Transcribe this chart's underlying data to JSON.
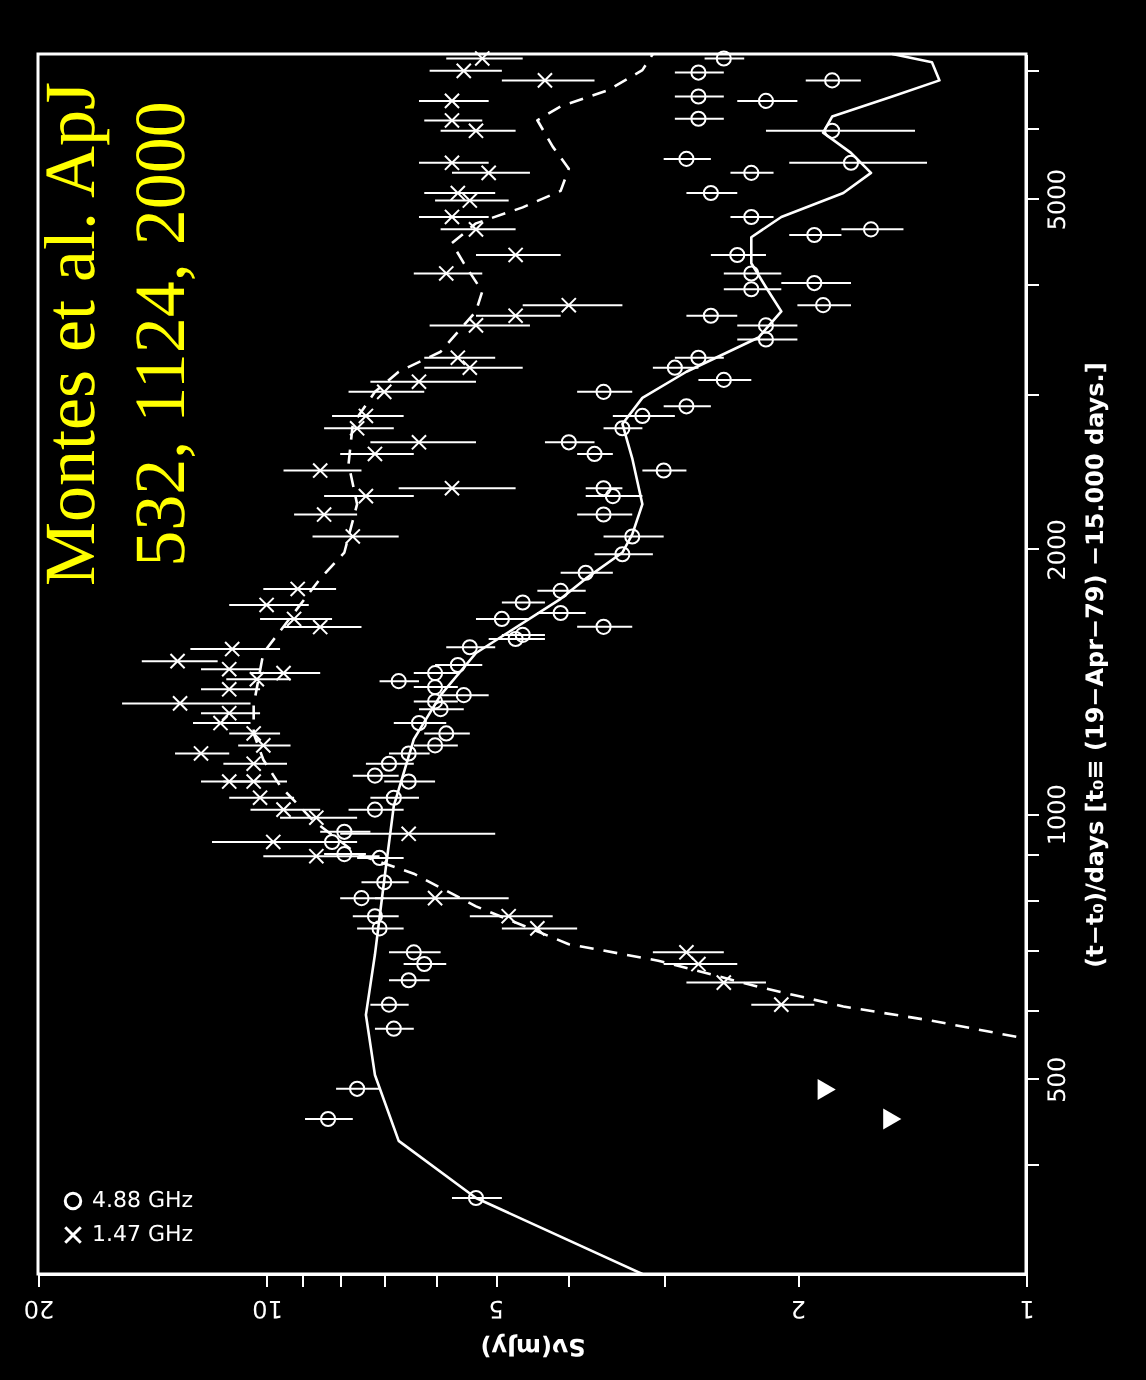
{
  "chart_data": {
    "type": "scatter",
    "xlabel": "Sν(mJy)",
    "ylabel": "(t−t₀)/days [t₀≡ (19−Apr−79) −15.000 days.]",
    "log": "xy",
    "grid": false,
    "legend": "bottom left",
    "xlim": [
      20,
      1
    ],
    "ylim": [
      300,
      7300
    ],
    "yticks": [
      {
        "value": 400,
        "label": null
      },
      500,
      {
        "value": 600,
        "label": null
      },
      {
        "value": 700,
        "label": null
      },
      {
        "value": 800,
        "label": null
      },
      {
        "value": 900,
        "label": null
      },
      1000,
      2000,
      {
        "value": 3000,
        "label": null
      },
      {
        "value": 4000,
        "label": null
      },
      5000,
      {
        "value": 6000,
        "label": null
      },
      {
        "value": 7000,
        "label": null
      }
    ],
    "xticks": [
      1,
      2,
      {
        "value": 3,
        "label": null
      },
      {
        "value": 4,
        "label": null
      },
      5,
      {
        "value": 6,
        "label": null
      },
      {
        "value": 7,
        "label": null
      },
      {
        "value": 8,
        "label": null
      },
      {
        "value": 9,
        "label": null
      },
      10,
      20
    ],
    "annotations": [
      "Montes et al. ApJ",
      "532, 1124, 2000"
    ],
    "series": [
      {
        "name": "4.88 GHz",
        "marker": "circle",
        "color": "#ffffff",
        "values": [
          366,
          450,
          487,
          570,
          607,
          647,
          675,
          696,
          741,
          765,
          802,
          836,
          891,
          900,
          929,
          954,
          1011,
          1043,
          1088,
          1105,
          1140,
          1171,
          1196,
          1234,
          1268,
          1315,
          1342,
          1364,
          1393,
          1415,
          1445,
          1476,
          1546,
          1580,
          1597,
          1631,
          1665,
          1691,
          1738,
          1792,
          1879,
          1972,
          2066,
          2188,
          2296,
          2344,
          2455,
          2564,
          2643,
          2742,
          2832,
          2904,
          3016,
          3112,
          3213,
          3298,
          3459,
          3589,
          3681,
          3784,
          3945,
          4009,
          4111,
          4315,
          4547,
          4614,
          4766,
          5074,
          5349,
          5492,
          5548,
          5971,
          6163,
          6457,
          6531,
          6813,
          6954,
          7215
        ],
        "x": [
          5.3,
          8.3,
          7.6,
          6.8,
          6.9,
          6.5,
          6.2,
          6.4,
          7.1,
          7.2,
          7.5,
          7.0,
          7.1,
          7.9,
          8.2,
          7.9,
          7.2,
          6.8,
          6.5,
          7.2,
          6.9,
          6.5,
          6.0,
          5.8,
          6.3,
          5.9,
          6.0,
          5.5,
          6.0,
          6.7,
          6.0,
          5.6,
          5.4,
          4.7,
          4.6,
          3.6,
          4.9,
          4.1,
          4.6,
          4.1,
          3.8,
          3.4,
          3.3,
          3.6,
          3.5,
          3.6,
          3.0,
          3.7,
          4.0,
          3.4,
          3.2,
          2.8,
          3.6,
          2.5,
          2.9,
          2.7,
          2.2,
          2.2,
          2.6,
          1.85,
          2.3,
          1.9,
          2.3,
          2.4,
          1.9,
          1.6,
          2.3,
          2.6,
          2.3,
          1.7,
          2.8,
          1.8,
          2.7,
          2.2,
          2.7,
          1.8,
          2.7,
          2.5
        ],
        "xerrors": [
          0.4,
          0.6,
          0.5,
          0.4,
          0.4,
          0.4,
          0.4,
          0.5,
          0.5,
          0.5,
          0.5,
          0.5,
          0.5,
          0.5,
          0.6,
          0.6,
          0.6,
          0.5,
          0.5,
          0.5,
          0.5,
          0.4,
          0.4,
          0.4,
          0.5,
          0.4,
          0.4,
          0.4,
          0.4,
          0.4,
          0.4,
          0.4,
          0.4,
          0.4,
          0.3,
          0.3,
          0.4,
          0.3,
          0.3,
          0.3,
          0.3,
          0.3,
          0.3,
          0.3,
          0.3,
          0.2,
          0.2,
          0.2,
          0.3,
          0.2,
          0.3,
          0.2,
          0.3,
          0.2,
          0.2,
          0.2,
          0.2,
          0.2,
          0.2,
          0.15,
          0.2,
          0.2,
          0.2,
          0.2,
          0.15,
          0.15,
          0.15,
          0.2,
          0.15,
          0.35,
          0.2,
          0.4,
          0.2,
          0.2,
          0.2,
          0.15,
          0.2,
          0.15
        ]
      },
      {
        "name": "1.47 GHz",
        "marker": "cross",
        "color": "#ffffff",
        "values": [
          607,
          643,
          675,
          696,
          741,
          765,
          802,
          895,
          929,
          949,
          990,
          1011,
          1043,
          1088,
          1088,
          1140,
          1171,
          1196,
          1234,
          1268,
          1301,
          1335,
          1385,
          1422,
          1445,
          1460,
          1491,
          1539,
          1630,
          1665,
          1727,
          1801,
          2066,
          2188,
          2296,
          2344,
          2455,
          2564,
          2643,
          2742,
          2832,
          3016,
          3097,
          3213,
          3298,
          3589,
          3681,
          3784,
          4111,
          4315,
          4614,
          4766,
          4975,
          5074,
          5349,
          5492,
          5971,
          6135,
          6457,
          6813,
          6985,
          7215
        ],
        "x": [
          2.1,
          2.5,
          2.7,
          2.8,
          4.4,
          4.8,
          6.0,
          8.6,
          9.8,
          6.5,
          8.6,
          9.5,
          10.2,
          10.4,
          11.2,
          10.4,
          12.2,
          10.1,
          10.4,
          11.5,
          11.2,
          13.0,
          11.2,
          10.3,
          9.5,
          11.2,
          13.1,
          11.1,
          8.5,
          9.2,
          10.0,
          9.1,
          7.7,
          8.4,
          7.4,
          5.7,
          8.5,
          7.2,
          6.3,
          7.6,
          7.4,
          7.0,
          6.3,
          5.4,
          5.6,
          5.3,
          4.7,
          4.0,
          5.8,
          4.7,
          5.3,
          5.7,
          5.4,
          5.6,
          5.1,
          5.7,
          5.3,
          5.7,
          5.7,
          4.3,
          5.5,
          5.2
        ],
        "xerrors": [
          0.2,
          0.3,
          0.3,
          0.3,
          0.5,
          0.6,
          1.2,
          1.5,
          2.0,
          1.5,
          1.0,
          1.0,
          1.0,
          1.0,
          1.0,
          1.0,
          1.0,
          0.8,
          0.8,
          1.0,
          1.0,
          2.5,
          1.0,
          1.0,
          1.0,
          1.0,
          1.5,
          1.5,
          1.0,
          1.0,
          1.2,
          1.0,
          1.0,
          0.8,
          1.0,
          1.0,
          1.0,
          0.8,
          1.0,
          0.8,
          0.8,
          0.8,
          1.0,
          0.8,
          0.6,
          0.8,
          0.6,
          0.6,
          0.6,
          0.6,
          0.6,
          0.6,
          0.6,
          0.6,
          0.6,
          0.6,
          0.6,
          0.5,
          0.6,
          0.6,
          0.6,
          0.6
        ]
      },
      {
        "marker": "triangle",
        "color": "#ffffff",
        "values": [
          486,
          450
        ],
        "x": [
          1.83,
          1.5
        ]
      },
      {
        "type": "line",
        "line_style": "solid",
        "color": "#ffffff",
        "values": [
          300,
          366,
          425,
          505,
          591,
          692,
          841,
          1021,
          1215,
          1364,
          1523,
          1755,
          1850,
          1981,
          2077,
          2248,
          2535,
          2773,
          2969,
          3179,
          3477,
          3723,
          3966,
          4223,
          4520,
          4766,
          5074,
          5349,
          5636,
          5943,
          6198,
          6531,
          6813,
          7145,
          7300
        ],
        "x": [
          3.2,
          5.3,
          6.7,
          7.2,
          7.4,
          7.2,
          7.0,
          6.8,
          6.4,
          5.9,
          5.3,
          4.1,
          3.8,
          3.4,
          3.3,
          3.2,
          3.3,
          3.4,
          3.2,
          2.8,
          2.25,
          2.1,
          2.2,
          2.3,
          2.3,
          2.1,
          1.74,
          1.6,
          1.7,
          1.85,
          1.8,
          1.5,
          1.3,
          1.33,
          1.5
        ]
      },
      {
        "type": "line",
        "line_style": "dashed",
        "color": "#ffffff",
        "values": [
          558,
          582,
          604,
          636,
          681,
          711,
          785,
          855,
          900,
          984,
          1076,
          1152,
          1234,
          1329,
          1523,
          1850,
          1981,
          2248,
          2497,
          2773,
          3016,
          3179,
          3350,
          3723,
          3923,
          4223,
          4451,
          4687,
          4887,
          5103,
          5408,
          5729,
          6138,
          6366,
          6639,
          6999,
          7300
        ],
        "x": [
          1.03,
          1.33,
          1.74,
          2.25,
          3.05,
          4.0,
          5.3,
          6.4,
          7.6,
          8.7,
          9.6,
          10.1,
          10.4,
          10.4,
          10.1,
          8.5,
          7.9,
          7.6,
          7.8,
          7.7,
          7.2,
          6.7,
          5.9,
          5.3,
          5.2,
          5.5,
          5.7,
          5.3,
          4.6,
          4.1,
          4.0,
          4.2,
          4.4,
          4.1,
          3.55,
          3.2,
          3.1
        ]
      }
    ]
  }
}
